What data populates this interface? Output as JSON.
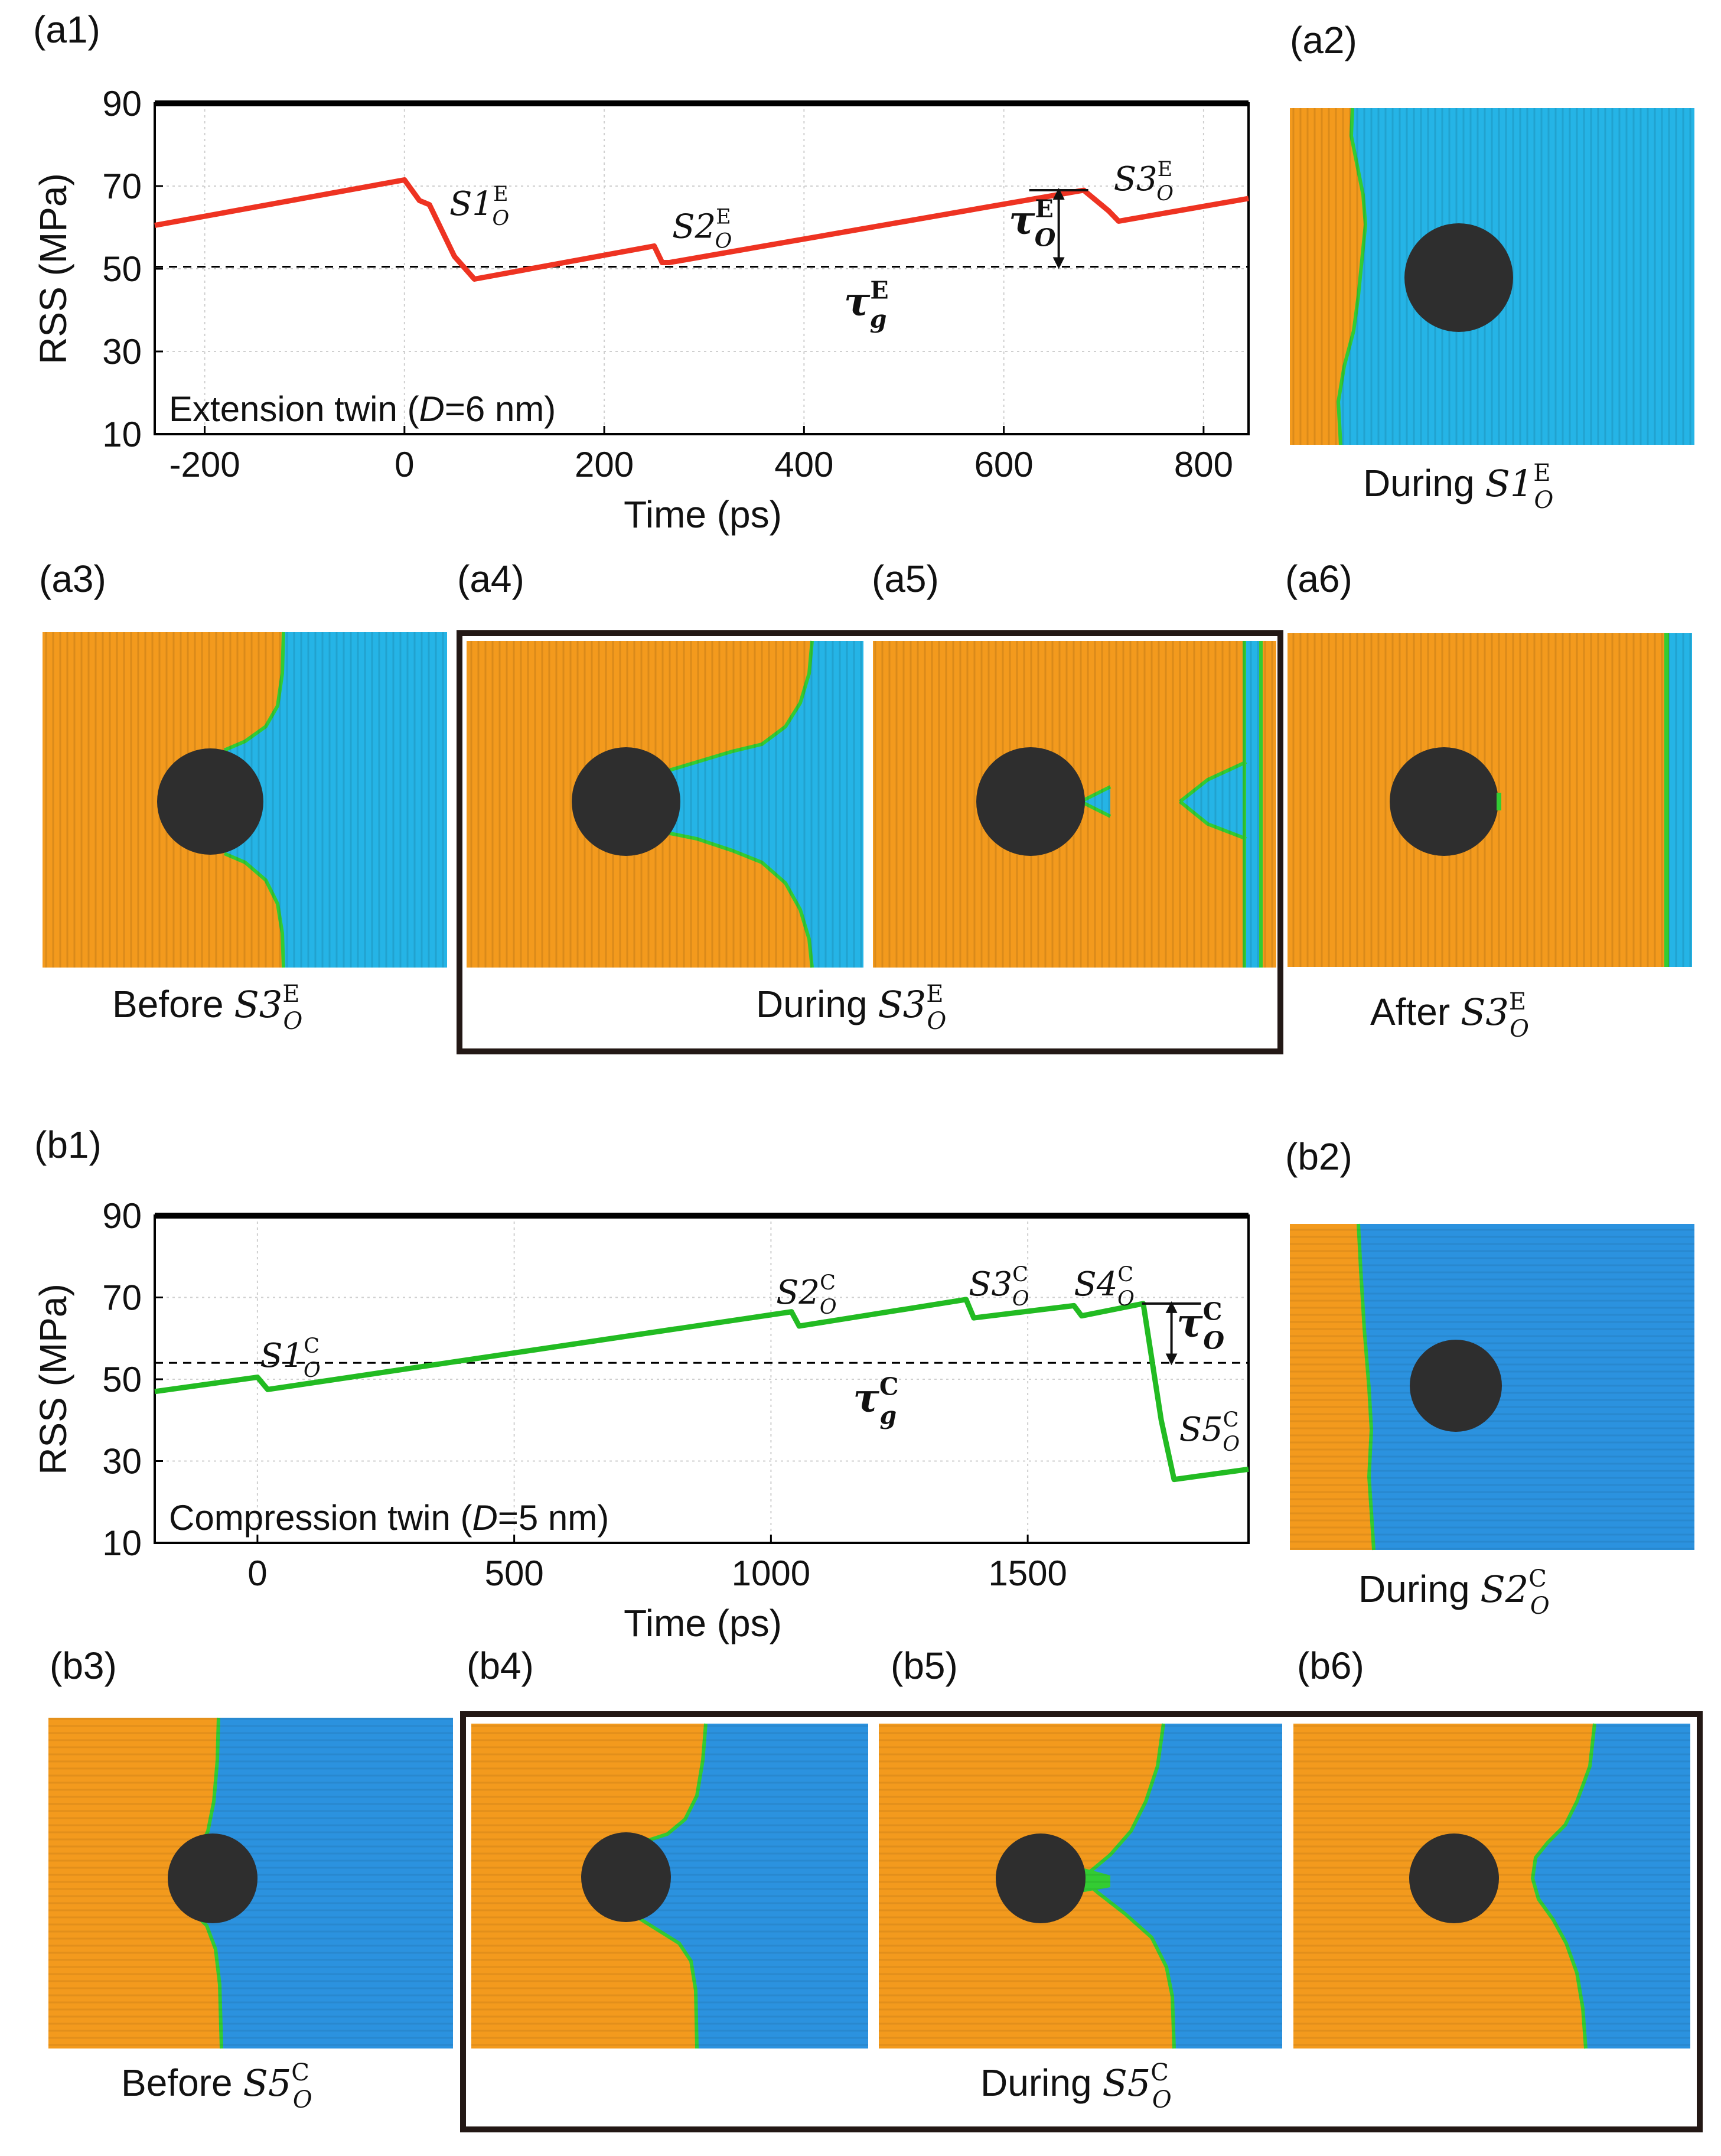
{
  "panel_labels": {
    "a1": "(a1)",
    "a2": "(a2)",
    "a3": "(a3)",
    "a4": "(a4)",
    "a5": "(a5)",
    "a6": "(a6)",
    "b1": "(b1)",
    "b2": "(b2)",
    "b3": "(b3)",
    "b4": "(b4)",
    "b5": "(b5)",
    "b6": "(b6)"
  },
  "colors": {
    "orange": "#f39a1d",
    "blue_a": "#25b4e6",
    "blue_b": "#2b92df",
    "green": "#33cc33",
    "precipitate": "#2e2e2e",
    "red_line": "#ee3322",
    "green_line": "#22bb22"
  },
  "captions": {
    "a2": {
      "prefix": "During ",
      "main": "S1",
      "sub": "O",
      "sup": "E"
    },
    "a3": {
      "prefix": "Before ",
      "main": "S3",
      "sub": "O",
      "sup": "E"
    },
    "a45": {
      "prefix": "During ",
      "main": "S3",
      "sub": "O",
      "sup": "E"
    },
    "a6": {
      "prefix": "After ",
      "main": "S3",
      "sub": "O",
      "sup": "E"
    },
    "b2": {
      "prefix": "During ",
      "main": "S2",
      "sub": "O",
      "sup": "C"
    },
    "b3": {
      "prefix": "Before ",
      "main": "S5",
      "sub": "O",
      "sup": "C"
    },
    "b456": {
      "prefix": "During ",
      "main": "S5",
      "sub": "O",
      "sup": "C"
    }
  },
  "chart_data": [
    {
      "id": "a1",
      "type": "line",
      "title": "",
      "xlabel": "Time (ps)",
      "ylabel": "RSS (MPa)",
      "xlim": [
        -250,
        845
      ],
      "ylim": [
        10,
        90
      ],
      "xticks": [
        -200,
        0,
        200,
        400,
        600,
        800
      ],
      "yticks": [
        10,
        30,
        50,
        70,
        90
      ],
      "grid": true,
      "series": [
        {
          "name": "Extension twin",
          "color": "#ee3322",
          "x": [
            -250,
            0,
            15,
            25,
            35,
            50,
            70,
            250,
            258,
            265,
            680,
            705,
            715,
            845
          ],
          "y": [
            60.5,
            71.5,
            66.5,
            65.5,
            60.5,
            53,
            47.5,
            55.5,
            51.5,
            51.5,
            69.0,
            64.0,
            61.5,
            67.0
          ]
        }
      ],
      "reference_line": {
        "y": 50.5,
        "style": "dashed",
        "label_main": "τ",
        "label_sub": "g",
        "label_sup": "E"
      },
      "annotations": [
        {
          "main": "S1",
          "sub": "O",
          "sup": "E",
          "x": 45,
          "y": 63
        },
        {
          "main": "S2",
          "sub": "O",
          "sup": "E",
          "x": 268,
          "y": 57.5
        },
        {
          "main": "S3",
          "sub": "O",
          "sup": "E",
          "x": 710,
          "y": 69
        },
        {
          "main": "τ",
          "sub": "O",
          "sup": "E",
          "x": 605,
          "y": 58.5,
          "bracket_low": 50.5,
          "bracket_high": 69.0,
          "bracket_x": 655
        }
      ],
      "inner_label": {
        "prefix": "Extension twin (",
        "var": "D",
        "suffix": "=6 nm)"
      }
    },
    {
      "id": "b1",
      "type": "line",
      "title": "",
      "xlabel": "Time (ps)",
      "ylabel": "RSS (MPa)",
      "xlim": [
        -200,
        1930
      ],
      "ylim": [
        10,
        90
      ],
      "xticks": [
        0,
        500,
        1000,
        1500
      ],
      "yticks": [
        10,
        30,
        50,
        70,
        90
      ],
      "grid": true,
      "series": [
        {
          "name": "Compression twin",
          "color": "#22bb22",
          "x": [
            -200,
            0,
            20,
            1040,
            1055,
            1380,
            1395,
            1590,
            1605,
            1725,
            1760,
            1785,
            1930
          ],
          "y": [
            47.0,
            50.5,
            47.5,
            66.5,
            63.0,
            69.5,
            65.0,
            68.0,
            65.5,
            68.5,
            40.0,
            25.5,
            28.0
          ]
        }
      ],
      "reference_line": {
        "y": 54.0,
        "style": "dashed",
        "label_main": "τ",
        "label_sub": "g",
        "label_sup": "C"
      },
      "annotations": [
        {
          "main": "S1",
          "sub": "O",
          "sup": "C",
          "x": 5,
          "y": 53
        },
        {
          "main": "S2",
          "sub": "O",
          "sup": "C",
          "x": 1010,
          "y": 68.5
        },
        {
          "main": "S3",
          "sub": "O",
          "sup": "C",
          "x": 1385,
          "y": 70.5
        },
        {
          "main": "S4",
          "sub": "O",
          "sup": "C",
          "x": 1590,
          "y": 70.5
        },
        {
          "main": "S5",
          "sub": "O",
          "sup": "C",
          "x": 1795,
          "y": 35
        },
        {
          "main": "τ",
          "sub": "O",
          "sup": "C",
          "x": 1790,
          "y": 60.5,
          "bracket_low": 54.0,
          "bracket_high": 68.5,
          "bracket_x": 1780
        }
      ],
      "inner_label": {
        "prefix": "Compression twin (",
        "var": "D",
        "suffix": "=5 nm)"
      }
    }
  ]
}
